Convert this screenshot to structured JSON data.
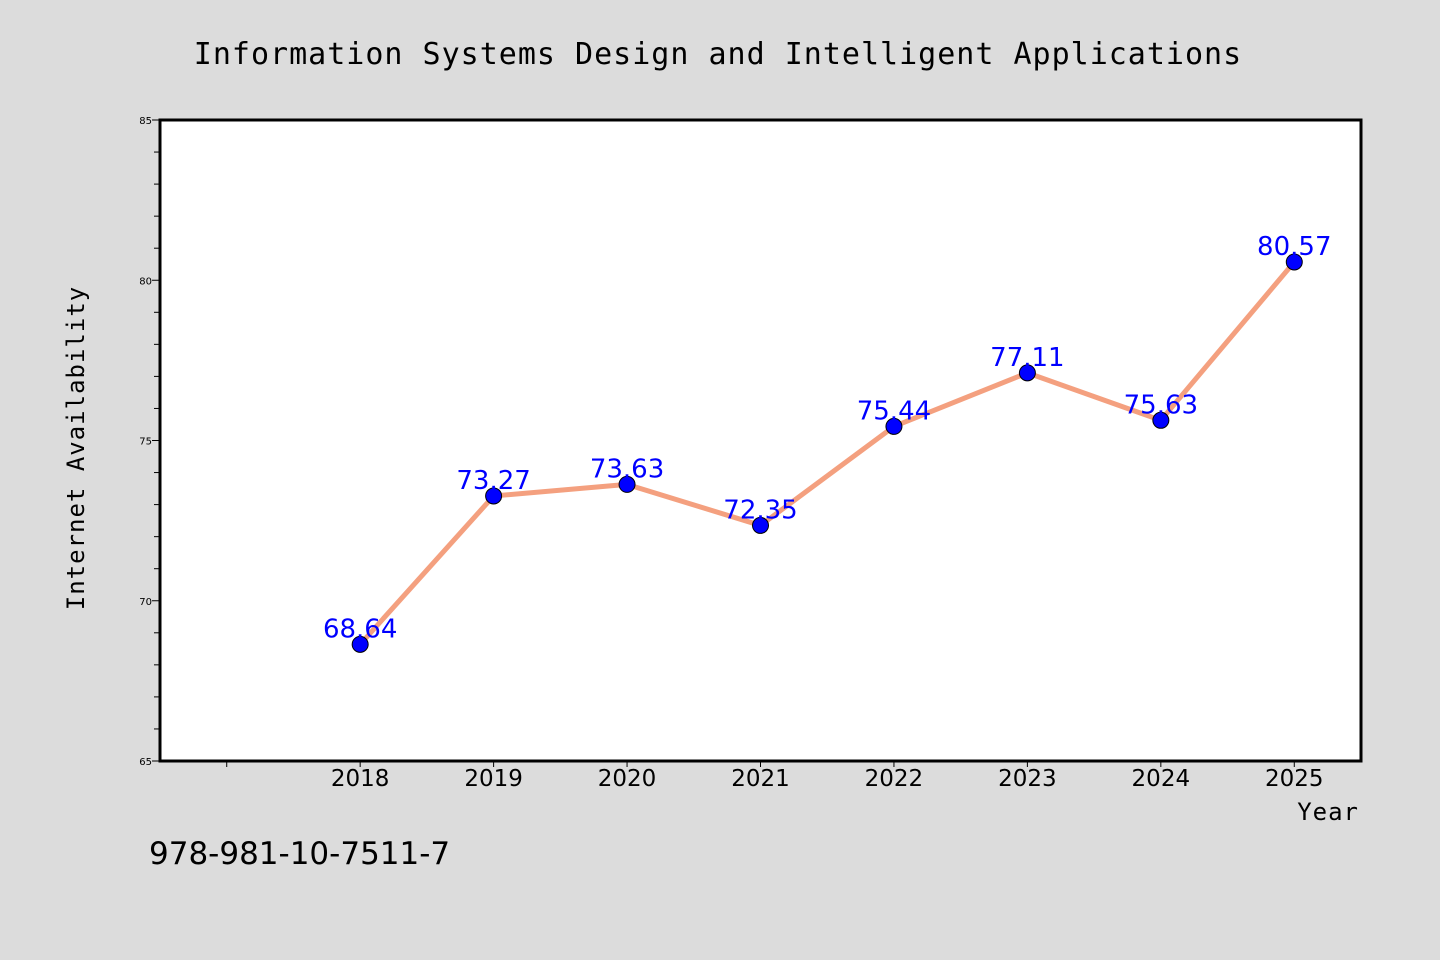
{
  "chart_data": {
    "type": "line",
    "title": "Information Systems Design and Intelligent Applications",
    "xlabel": "Year",
    "ylabel": "Internet Availability",
    "x": [
      2018,
      2019,
      2020,
      2021,
      2022,
      2023,
      2024,
      2025
    ],
    "series": [
      {
        "values": [
          68.64,
          73.27,
          73.63,
          72.35,
          75.44,
          77.11,
          75.63,
          80.57
        ],
        "labels": [
          "68.64",
          "73.27",
          "73.63",
          "72.35",
          "75.44",
          "77.11",
          "75.63",
          "80.57"
        ]
      }
    ],
    "xlim": [
      2016.5,
      2025.5
    ],
    "ylim": [
      65,
      85
    ],
    "yticks": [
      65,
      70,
      75,
      80,
      85
    ],
    "grid": false,
    "legend": "none",
    "colors": {
      "line": "#f4a07f",
      "marker": "#0000ff",
      "data_label": "#0000ff",
      "plot_background": "#ffffff",
      "page_background": "#dcdcdc"
    }
  },
  "footer": {
    "isbn": "978-981-10-7511-7"
  }
}
